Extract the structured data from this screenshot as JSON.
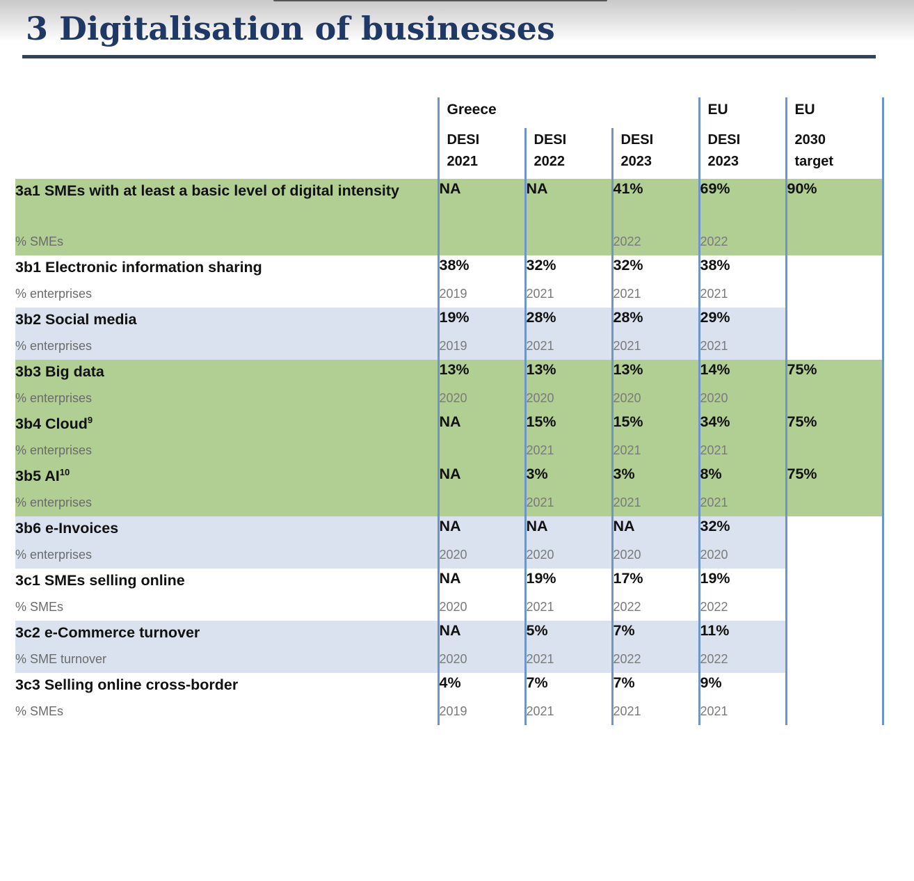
{
  "section": {
    "title": "3 Digitalisation of businesses"
  },
  "table": {
    "groups": [
      "Greece",
      "EU",
      "EU"
    ],
    "columns": [
      {
        "line1": "DESI",
        "line2": "2021"
      },
      {
        "line1": "DESI",
        "line2": "2022"
      },
      {
        "line1": "DESI",
        "line2": "2023"
      },
      {
        "line1": "DESI",
        "line2": "2023"
      },
      {
        "line1": "2030",
        "line2": "target"
      }
    ],
    "rows": [
      {
        "name": "3a1 SMEs with at least a basic level of digital intensity",
        "unit": "% SMEs",
        "values": [
          "NA",
          "NA",
          "41%",
          "69%",
          "90%"
        ],
        "years": [
          "",
          "",
          "2022",
          "2022",
          ""
        ]
      },
      {
        "name": "3b1 Electronic information sharing",
        "unit": "% enterprises",
        "values": [
          "38%",
          "32%",
          "32%",
          "38%",
          ""
        ],
        "years": [
          "2019",
          "2021",
          "2021",
          "2021",
          ""
        ]
      },
      {
        "name": "3b2 Social media",
        "unit": "% enterprises",
        "values": [
          "19%",
          "28%",
          "28%",
          "29%",
          ""
        ],
        "years": [
          "2019",
          "2021",
          "2021",
          "2021",
          ""
        ]
      },
      {
        "name": "3b3 Big data",
        "unit": "% enterprises",
        "values": [
          "13%",
          "13%",
          "13%",
          "14%",
          "75%"
        ],
        "years": [
          "2020",
          "2020",
          "2020",
          "2020",
          ""
        ]
      },
      {
        "name": "3b4 Cloud",
        "sup": "9",
        "unit": "% enterprises",
        "values": [
          "NA",
          "15%",
          "15%",
          "34%",
          "75%"
        ],
        "years": [
          "",
          "2021",
          "2021",
          "2021",
          ""
        ]
      },
      {
        "name": "3b5 AI",
        "sup": "10",
        "unit": "% enterprises",
        "values": [
          "NA",
          "3%",
          "3%",
          "8%",
          "75%"
        ],
        "years": [
          "",
          "2021",
          "2021",
          "2021",
          ""
        ]
      },
      {
        "name": "3b6 e-Invoices",
        "unit": "% enterprises",
        "values": [
          "NA",
          "NA",
          "NA",
          "32%",
          ""
        ],
        "years": [
          "2020",
          "2020",
          "2020",
          "2020",
          ""
        ]
      },
      {
        "name": "3c1 SMEs selling online",
        "unit": "% SMEs",
        "values": [
          "NA",
          "19%",
          "17%",
          "19%",
          ""
        ],
        "years": [
          "2020",
          "2021",
          "2022",
          "2022",
          ""
        ]
      },
      {
        "name": "3c2 e-Commerce turnover",
        "unit": "% SME turnover",
        "values": [
          "NA",
          "5%",
          "7%",
          "11%",
          ""
        ],
        "years": [
          "2020",
          "2021",
          "2022",
          "2022",
          ""
        ]
      },
      {
        "name": "3c3 Selling online cross-border",
        "unit": "% SMEs",
        "values": [
          "4%",
          "7%",
          "7%",
          "9%",
          ""
        ],
        "years": [
          "2019",
          "2021",
          "2021",
          "2021",
          ""
        ]
      }
    ]
  },
  "colors": {
    "title": "#1f3864",
    "rule": "#2e4360",
    "green_band": "#b1ce93",
    "blue_band": "#dae2ef",
    "column_divider": "#6f95c8"
  }
}
